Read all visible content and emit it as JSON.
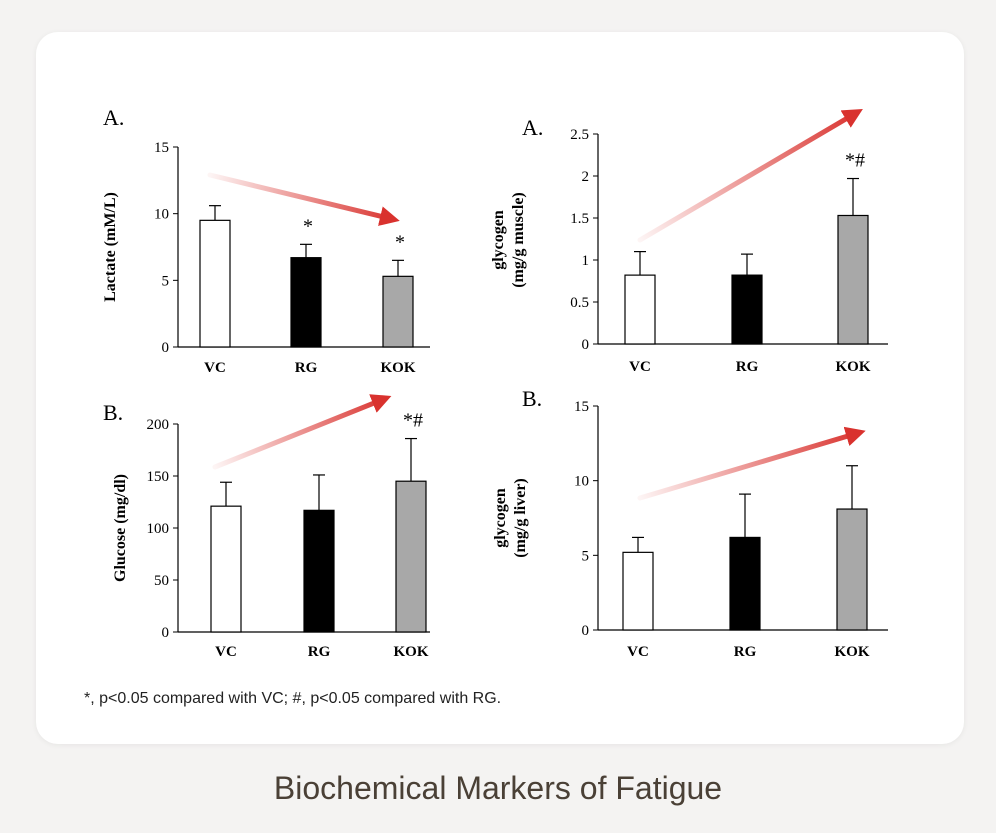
{
  "colors": {
    "VC": "#ffffff",
    "RG": "#000000",
    "KOK": "#a8a8a8",
    "arrow": "#d9322e"
  },
  "chart_data": [
    {
      "type": "bar",
      "panel_label": "A.",
      "ylabel": [
        "Lactate (mM/L)"
      ],
      "categories": [
        "VC",
        "RG",
        "KOK"
      ],
      "values": [
        9.5,
        6.7,
        5.3
      ],
      "errors": [
        1.1,
        1.0,
        1.2
      ],
      "marks": [
        "",
        "*",
        "*"
      ],
      "ylim": [
        0,
        15
      ],
      "yticks": [
        "0",
        "5",
        "10",
        "15"
      ],
      "trend": "down"
    },
    {
      "type": "bar",
      "panel_label": "A.",
      "ylabel": [
        "glycogen",
        "(mg/g muscle)"
      ],
      "categories": [
        "VC",
        "RG",
        "KOK"
      ],
      "values": [
        0.82,
        0.82,
        1.53
      ],
      "errors": [
        0.28,
        0.25,
        0.44
      ],
      "marks": [
        "",
        "",
        "*#"
      ],
      "ylim": [
        0,
        2.5
      ],
      "yticks": [
        "0",
        "0.5",
        "1",
        "1.5",
        "2",
        "2.5"
      ],
      "trend": "up"
    },
    {
      "type": "bar",
      "panel_label": "B.",
      "ylabel": [
        "Glucose (mg/dl)"
      ],
      "categories": [
        "VC",
        "RG",
        "KOK"
      ],
      "values": [
        121,
        117,
        145
      ],
      "errors": [
        23,
        34,
        41
      ],
      "marks": [
        "",
        "",
        "*#"
      ],
      "ylim": [
        0,
        200
      ],
      "yticks": [
        "0",
        "50",
        "100",
        "150",
        "200"
      ],
      "trend": "up"
    },
    {
      "type": "bar",
      "panel_label": "B.",
      "ylabel": [
        "glycogen",
        "(mg/g liver)"
      ],
      "categories": [
        "VC",
        "RG",
        "KOK"
      ],
      "values": [
        5.2,
        6.2,
        8.1
      ],
      "errors": [
        1.0,
        2.9,
        2.9
      ],
      "marks": [
        "",
        "",
        ""
      ],
      "ylim": [
        0,
        15
      ],
      "yticks": [
        "0",
        "5",
        "10",
        "15"
      ],
      "trend": "up"
    }
  ],
  "note": "*, p<0.05 compared with VC; #, p<0.05 compared with RG.",
  "caption": "Biochemical Markers of Fatigue"
}
